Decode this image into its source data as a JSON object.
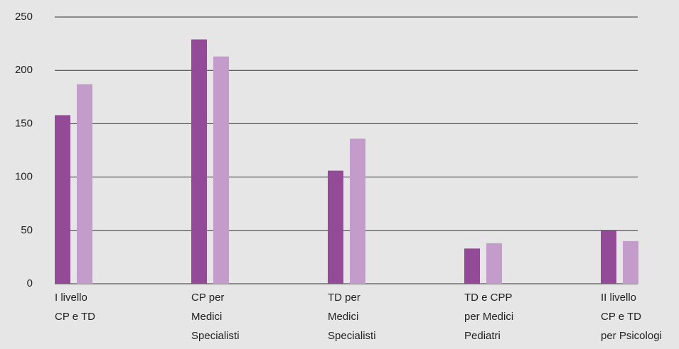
{
  "chart_data": {
    "type": "bar",
    "categories": [
      [
        "I livello",
        "CP e TD"
      ],
      [
        "CP per",
        "Medici",
        "Specialisti"
      ],
      [
        "TD per",
        "Medici",
        "Specialisti"
      ],
      [
        "TD e CPP",
        "per Medici",
        "Pediatri"
      ],
      [
        "II livello",
        "CP e TD",
        "per Psicologi"
      ]
    ],
    "series": [
      {
        "color": "#934a97",
        "values": [
          158,
          229,
          106,
          33,
          50
        ]
      },
      {
        "color": "#c49ccb",
        "values": [
          187,
          213,
          136,
          38,
          40
        ]
      }
    ],
    "ylim": [
      0,
      250
    ],
    "yticks": [
      0,
      50,
      100,
      150,
      200,
      250
    ],
    "grid": true
  }
}
